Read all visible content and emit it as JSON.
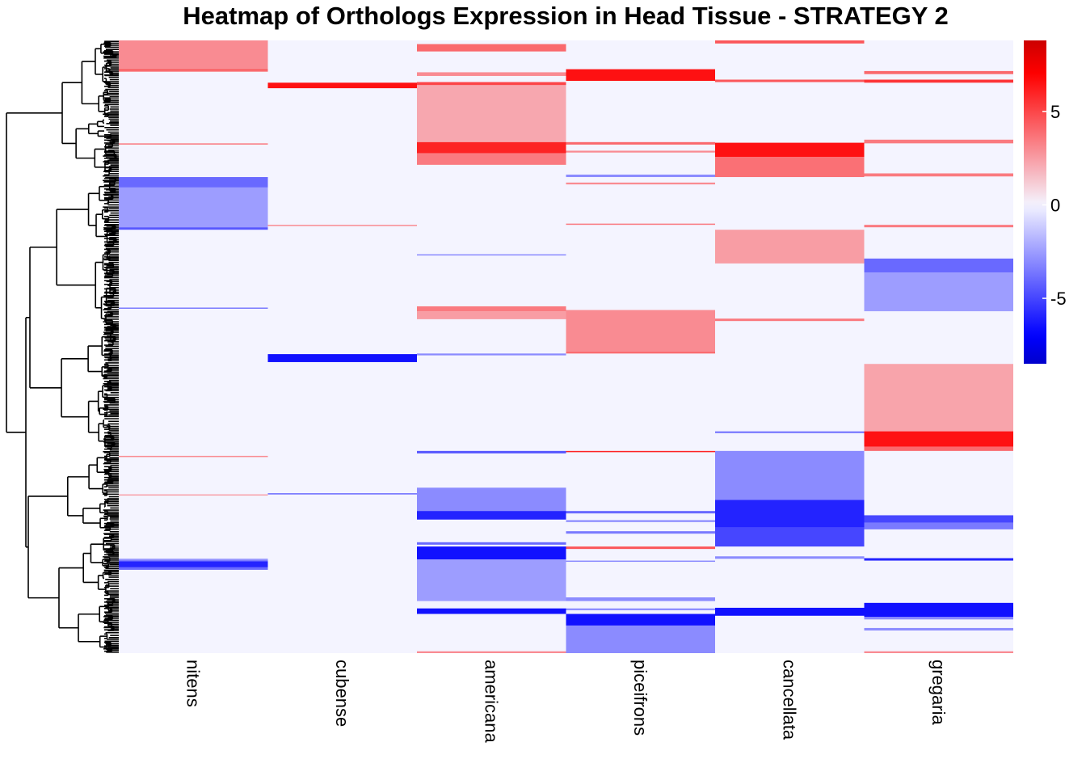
{
  "chart_data": {
    "type": "heatmap",
    "title": "Heatmap of Orthologs Expression in Head Tissue - STRATEGY 2",
    "row_unit": "percent of ortholog rows, top to bottom (dendrogram order)",
    "columns": [
      "nitens",
      "cubense",
      "americana",
      "piceifrons",
      "cancellata",
      "gregaria"
    ],
    "colorbar": {
      "ticks": [
        5,
        0,
        -5
      ],
      "range": [
        -8.5,
        8.8
      ],
      "colors": {
        "neg": "#0000ff",
        "mid": "#f4f4ff",
        "pos": "#ff0000"
      }
    },
    "background_value": 0,
    "column_blocks": {
      "nitens": [
        {
          "from": 0.0,
          "to": 4.6,
          "value": 3.0
        },
        {
          "from": 4.6,
          "to": 5.1,
          "value": 4.0
        },
        {
          "from": 16.8,
          "to": 17.0,
          "value": 3.5
        },
        {
          "from": 22.3,
          "to": 24.0,
          "value": -4.0
        },
        {
          "from": 24.0,
          "to": 30.5,
          "value": -2.5
        },
        {
          "from": 30.5,
          "to": 30.9,
          "value": -4.5
        },
        {
          "from": 43.6,
          "to": 43.8,
          "value": -3.5
        },
        {
          "from": 67.8,
          "to": 68.0,
          "value": 3.0
        },
        {
          "from": 74.1,
          "to": 74.2,
          "value": 3.0
        },
        {
          "from": 84.6,
          "to": 85.0,
          "value": -3.5
        },
        {
          "from": 84.6,
          "to": 84.8,
          "value": -2.5
        },
        {
          "from": 85.0,
          "to": 86.0,
          "value": -6.0
        },
        {
          "from": 86.0,
          "to": 86.4,
          "value": -4.0
        }
      ],
      "cubense": [
        {
          "from": 6.9,
          "to": 7.8,
          "value": 6.5
        },
        {
          "from": 30.1,
          "to": 30.3,
          "value": 3.0
        },
        {
          "from": 51.2,
          "to": 52.5,
          "value": -6.5
        },
        {
          "from": 73.9,
          "to": 74.1,
          "value": -4.0
        }
      ],
      "americana": [
        {
          "from": 0.6,
          "to": 1.8,
          "value": 4.0
        },
        {
          "from": 5.2,
          "to": 5.8,
          "value": 3.0
        },
        {
          "from": 6.8,
          "to": 7.3,
          "value": 5.0
        },
        {
          "from": 7.3,
          "to": 16.6,
          "value": 2.2
        },
        {
          "from": 16.6,
          "to": 18.4,
          "value": 6.0
        },
        {
          "from": 18.4,
          "to": 20.3,
          "value": 3.5
        },
        {
          "from": 34.9,
          "to": 35.1,
          "value": -3.0
        },
        {
          "from": 43.4,
          "to": 44.2,
          "value": 3.5
        },
        {
          "from": 44.2,
          "to": 45.5,
          "value": 2.5
        },
        {
          "from": 51.1,
          "to": 51.4,
          "value": -3.0
        },
        {
          "from": 67.0,
          "to": 67.4,
          "value": -4.5
        },
        {
          "from": 73.0,
          "to": 76.8,
          "value": -3.0
        },
        {
          "from": 76.8,
          "to": 78.2,
          "value": -6.0
        },
        {
          "from": 81.9,
          "to": 82.3,
          "value": -4.0
        },
        {
          "from": 82.6,
          "to": 84.7,
          "value": -6.5
        },
        {
          "from": 84.7,
          "to": 91.5,
          "value": -2.5
        },
        {
          "from": 92.7,
          "to": 93.6,
          "value": -6.5
        },
        {
          "from": 99.7,
          "to": 100.0,
          "value": 3.0
        }
      ],
      "piceifrons": [
        {
          "from": 4.7,
          "to": 6.6,
          "value": 6.5
        },
        {
          "from": 16.6,
          "to": 17.0,
          "value": 4.0
        },
        {
          "from": 18.0,
          "to": 18.3,
          "value": 3.0
        },
        {
          "from": 21.9,
          "to": 22.3,
          "value": -3.0
        },
        {
          "from": 23.2,
          "to": 23.5,
          "value": 3.0
        },
        {
          "from": 29.9,
          "to": 30.1,
          "value": 3.5
        },
        {
          "from": 44.0,
          "to": 50.8,
          "value": 3.0
        },
        {
          "from": 50.8,
          "to": 51.1,
          "value": 4.0
        },
        {
          "from": 67.0,
          "to": 67.2,
          "value": 6.0
        },
        {
          "from": 76.8,
          "to": 77.2,
          "value": -4.0
        },
        {
          "from": 78.3,
          "to": 78.6,
          "value": -3.0
        },
        {
          "from": 80.1,
          "to": 80.5,
          "value": -3.5
        },
        {
          "from": 82.6,
          "to": 83.0,
          "value": 4.5
        },
        {
          "from": 84.9,
          "to": 85.1,
          "value": -3.0
        },
        {
          "from": 90.9,
          "to": 91.5,
          "value": -3.0
        },
        {
          "from": 92.7,
          "to": 93.0,
          "value": -3.0
        },
        {
          "from": 93.6,
          "to": 95.5,
          "value": -6.5
        },
        {
          "from": 95.5,
          "to": 100.0,
          "value": -3.0
        }
      ],
      "cancellata": [
        {
          "from": 0.0,
          "to": 0.5,
          "value": 4.5
        },
        {
          "from": 6.4,
          "to": 6.8,
          "value": 4.5
        },
        {
          "from": 16.7,
          "to": 19.0,
          "value": 6.5
        },
        {
          "from": 19.0,
          "to": 22.3,
          "value": 3.8
        },
        {
          "from": 30.9,
          "to": 36.4,
          "value": 2.5
        },
        {
          "from": 45.4,
          "to": 45.8,
          "value": 3.5
        },
        {
          "from": 63.8,
          "to": 64.1,
          "value": -3.5
        },
        {
          "from": 67.0,
          "to": 75.0,
          "value": -3.0
        },
        {
          "from": 75.0,
          "to": 79.5,
          "value": -6.0
        },
        {
          "from": 79.5,
          "to": 82.6,
          "value": -5.0
        },
        {
          "from": 84.2,
          "to": 84.6,
          "value": -3.0
        },
        {
          "from": 92.6,
          "to": 93.9,
          "value": -6.5
        }
      ],
      "gregaria": [
        {
          "from": 5.0,
          "to": 5.5,
          "value": 4.0
        },
        {
          "from": 6.4,
          "to": 6.9,
          "value": 5.5
        },
        {
          "from": 16.2,
          "to": 16.8,
          "value": 3.5
        },
        {
          "from": 21.7,
          "to": 22.2,
          "value": 3.5
        },
        {
          "from": 30.1,
          "to": 30.5,
          "value": 3.5
        },
        {
          "from": 35.6,
          "to": 37.9,
          "value": -4.0
        },
        {
          "from": 37.9,
          "to": 44.2,
          "value": -2.5
        },
        {
          "from": 52.8,
          "to": 63.8,
          "value": 2.3
        },
        {
          "from": 63.8,
          "to": 66.3,
          "value": 6.5
        },
        {
          "from": 66.3,
          "to": 67.0,
          "value": 4.0
        },
        {
          "from": 77.5,
          "to": 78.7,
          "value": -5.0
        },
        {
          "from": 78.7,
          "to": 79.8,
          "value": -3.5
        },
        {
          "from": 84.5,
          "to": 84.9,
          "value": -6.0
        },
        {
          "from": 91.8,
          "to": 94.1,
          "value": -6.5
        },
        {
          "from": 94.1,
          "to": 94.5,
          "value": -3.0
        },
        {
          "from": 95.9,
          "to": 96.3,
          "value": -3.0
        },
        {
          "from": 99.7,
          "to": 100.0,
          "value": 3.0
        }
      ]
    },
    "row_dendrogram": "hierarchical clustering of ortholog rows"
  }
}
